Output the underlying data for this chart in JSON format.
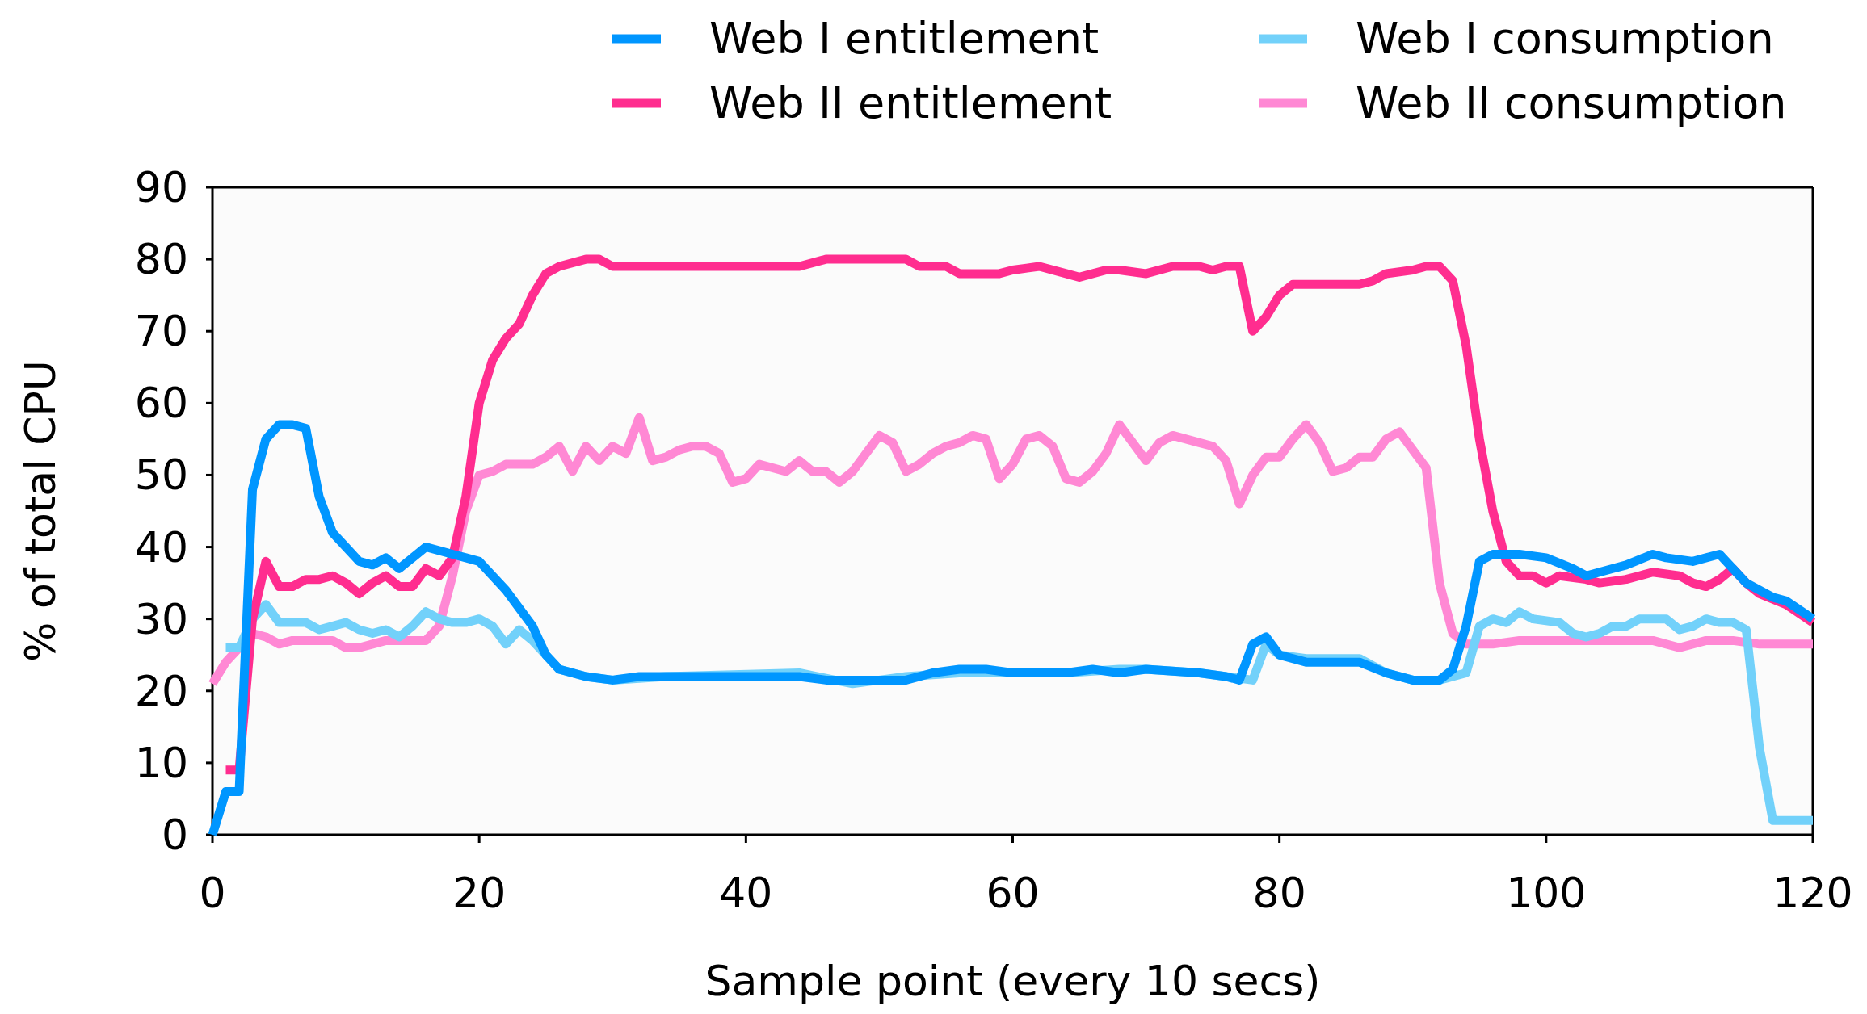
{
  "chart_data": {
    "type": "line",
    "xlabel": "Sample point (every 10 secs)",
    "ylabel": "% of total CPU",
    "xlim": [
      0,
      120
    ],
    "xticks": [
      0,
      20,
      40,
      60,
      80,
      100,
      120
    ],
    "ylim": [
      0,
      90
    ],
    "yticks": [
      0,
      10,
      20,
      30,
      40,
      50,
      60,
      70,
      80,
      90
    ],
    "legend": "top right",
    "grid": false,
    "marker": "none",
    "line_style": "solid",
    "series": [
      {
        "name": "Web II consumption",
        "color": "#ff88d4",
        "x": [
          0,
          1,
          2,
          3,
          4,
          5,
          6,
          7,
          8,
          9,
          10,
          11,
          12,
          13,
          14,
          15,
          16,
          17,
          18,
          19,
          20,
          21,
          22,
          23,
          24,
          25,
          26,
          27,
          28,
          29,
          30,
          31,
          32,
          33,
          34,
          35,
          36,
          37,
          38,
          39,
          40,
          41,
          42,
          43,
          44,
          45,
          46,
          47,
          48,
          49,
          50,
          51,
          52,
          53,
          54,
          55,
          56,
          57,
          58,
          59,
          60,
          61,
          62,
          63,
          64,
          65,
          66,
          67,
          68,
          69,
          70,
          71,
          72,
          73,
          74,
          75,
          76,
          77,
          78,
          79,
          80,
          81,
          82,
          83,
          84,
          85,
          86,
          87,
          88,
          89,
          90,
          91,
          92,
          93,
          94,
          96,
          98,
          100,
          102,
          104,
          106,
          108,
          110,
          112,
          114,
          116,
          120
        ],
        "values": [
          21,
          24,
          26,
          28,
          27.5,
          26.5,
          27,
          27,
          27,
          27,
          26,
          26,
          26.5,
          27,
          27,
          27,
          27,
          29,
          36,
          45,
          50,
          50.5,
          51.5,
          51.5,
          51.5,
          52.5,
          54,
          50.5,
          54,
          52,
          54,
          53,
          58,
          52,
          52.5,
          53.5,
          54,
          54,
          53,
          49,
          49.5,
          51.5,
          51,
          50.5,
          52,
          50.5,
          50.5,
          49,
          50.5,
          53,
          55.5,
          54.5,
          50.5,
          51.5,
          53,
          54,
          54.5,
          55.5,
          55,
          49.5,
          51.5,
          55,
          55.5,
          54,
          49.5,
          49,
          50.5,
          53,
          57,
          54.5,
          52,
          54.5,
          55.5,
          55,
          54.5,
          54,
          52,
          46,
          50,
          52.5,
          52.5,
          55,
          57,
          54.5,
          50.5,
          51,
          52.5,
          52.5,
          55,
          56,
          53.5,
          51,
          35,
          28,
          26.5,
          26.5,
          27,
          27,
          27,
          27,
          27,
          27,
          26,
          27,
          27,
          26.5,
          26.5
        ]
      },
      {
        "name": "Web I consumption",
        "color": "#72d1fa",
        "x": [
          1,
          2,
          3,
          4,
          5,
          6,
          7,
          8,
          9,
          10,
          11,
          12,
          13,
          14,
          15,
          16,
          17,
          18,
          19,
          20,
          21,
          22,
          23,
          24,
          26,
          28,
          30,
          34,
          44,
          48,
          50,
          52,
          56,
          60,
          64,
          68,
          70,
          74,
          76,
          78,
          79,
          80,
          82,
          86,
          88,
          90,
          92,
          94,
          95,
          96,
          97,
          98,
          99,
          101,
          102,
          103,
          104,
          105,
          106,
          107,
          109,
          110,
          111,
          112,
          113,
          114,
          115,
          116,
          117,
          118,
          120
        ],
        "values": [
          26,
          26,
          30,
          32,
          29.5,
          29.5,
          29.5,
          28.5,
          29,
          29.5,
          28.5,
          28,
          28.5,
          27.5,
          29,
          31,
          30,
          29.5,
          29.5,
          30,
          29,
          26.5,
          28.5,
          27,
          23,
          22,
          21.5,
          22,
          22.5,
          21,
          21.5,
          22,
          22.5,
          22.5,
          22.5,
          23,
          23,
          22.5,
          22,
          21.5,
          26.5,
          25,
          24.5,
          24.5,
          22.5,
          21.5,
          21.5,
          22.5,
          29,
          30,
          29.5,
          31,
          30,
          29.5,
          28,
          27.5,
          28,
          29,
          29,
          30,
          30,
          28.5,
          29,
          30,
          29.5,
          29.5,
          28.5,
          12,
          2,
          2,
          2
        ]
      },
      {
        "name": "Web II entitlement",
        "color": "#ff2d8f",
        "x": [
          1,
          2,
          3,
          4,
          5,
          6,
          7,
          8,
          9,
          10,
          11,
          12,
          13,
          14,
          15,
          16,
          17,
          18,
          19,
          20,
          21,
          22,
          23,
          24,
          25,
          26,
          28,
          29,
          30,
          32,
          44,
          46,
          52,
          53,
          55,
          56,
          59,
          60,
          62,
          64,
          65,
          67,
          68,
          70,
          72,
          74,
          75,
          76,
          77,
          78,
          79,
          80,
          81,
          86,
          87,
          88,
          90,
          91,
          92,
          93,
          94,
          95,
          96,
          97,
          98,
          99,
          100,
          101,
          103,
          104,
          106,
          107,
          108,
          110,
          111,
          112,
          113,
          114,
          115,
          116,
          118,
          120
        ],
        "values": [
          9,
          9,
          30,
          38,
          34.5,
          34.5,
          35.5,
          35.5,
          36,
          35,
          33.5,
          35,
          36,
          34.5,
          34.5,
          37,
          36,
          38.5,
          47,
          60,
          66,
          69,
          71,
          75,
          78,
          79,
          80,
          80,
          79,
          79,
          79,
          80,
          80,
          79,
          79,
          78,
          78,
          78.5,
          79,
          78,
          77.5,
          78.5,
          78.5,
          78,
          79,
          79,
          78.5,
          79,
          79,
          70,
          72,
          75,
          76.5,
          76.5,
          77,
          78,
          78.5,
          79,
          79,
          77,
          68,
          55,
          45,
          38,
          36,
          36,
          35,
          36,
          35.5,
          35,
          35.5,
          36,
          36.5,
          36,
          35,
          34.5,
          35.5,
          37,
          35,
          33.5,
          32,
          29.5
        ]
      },
      {
        "name": "Web I entitlement",
        "color": "#0096ff",
        "x": [
          0,
          1,
          2,
          3,
          4,
          5,
          6,
          7,
          8,
          9,
          10,
          11,
          12,
          13,
          14,
          15,
          16,
          17,
          18,
          19,
          20,
          22,
          24,
          25,
          26,
          28,
          30,
          32,
          34,
          40,
          44,
          46,
          50,
          52,
          54,
          56,
          58,
          60,
          64,
          66,
          68,
          70,
          74,
          76,
          77,
          78,
          79,
          80,
          82,
          86,
          88,
          90,
          92,
          93,
          94,
          95,
          96,
          98,
          100,
          102,
          103,
          105,
          106,
          108,
          109,
          111,
          112,
          113,
          115,
          117,
          118,
          120
        ],
        "values": [
          0,
          6,
          6,
          48,
          55,
          57,
          57,
          56.5,
          47,
          42,
          40,
          38,
          37.5,
          38.5,
          37,
          38.5,
          40,
          39.5,
          39,
          38.5,
          38,
          34,
          29,
          25,
          23,
          22,
          21.5,
          22,
          22,
          22,
          22,
          21.5,
          21.5,
          21.5,
          22.5,
          23,
          23,
          22.5,
          22.5,
          23,
          22.5,
          23,
          22.5,
          22,
          21.5,
          26.5,
          27.5,
          25,
          24,
          24,
          22.5,
          21.5,
          21.5,
          23,
          29,
          38,
          39,
          39,
          38.5,
          37,
          36,
          37,
          37.5,
          39,
          38.5,
          38,
          38.5,
          39,
          35,
          33,
          32.5,
          30
        ]
      }
    ]
  }
}
